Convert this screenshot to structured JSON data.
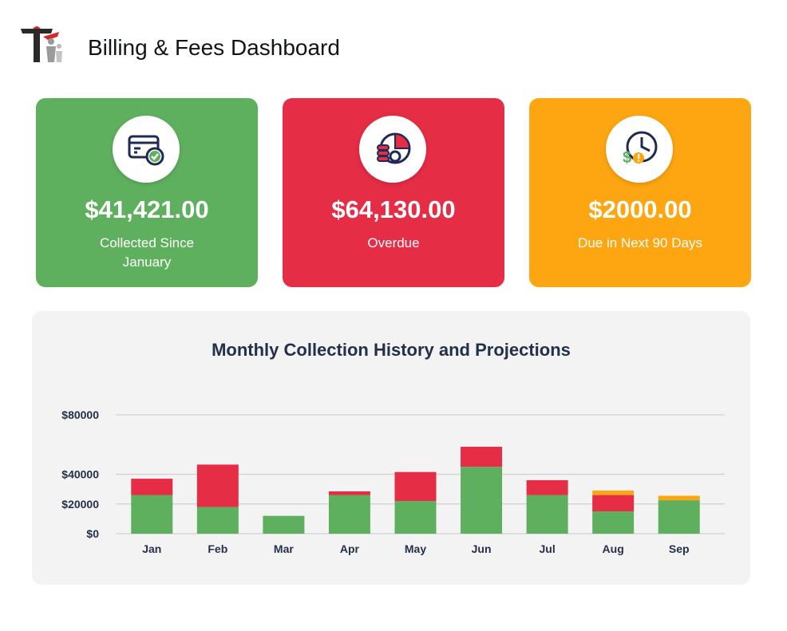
{
  "header": {
    "title": "Billing & Fees Dashboard"
  },
  "cards": [
    {
      "amount": "$41,421.00",
      "caption": "Collected Since January",
      "color": "#5fb05e",
      "icon": "card-check-icon"
    },
    {
      "amount": "$64,130.00",
      "caption": "Overdue",
      "color": "#e52d45",
      "icon": "pie-coins-icon"
    },
    {
      "amount": "$2000.00",
      "caption": "Due in Next 90 Days",
      "color": "#fea512",
      "icon": "clock-dollar-warning-icon"
    }
  ],
  "colors": {
    "collected": "#5fb05e",
    "overdue": "#e52d45",
    "projected": "#fea512",
    "text": "#24304a",
    "grid": "#d0d0d0"
  },
  "chart_data": {
    "type": "bar",
    "stacked": true,
    "title": "Monthly Collection History and Projections",
    "xlabel": "",
    "ylabel": "",
    "categories": [
      "Jan",
      "Feb",
      "Mar",
      "Apr",
      "May",
      "Jun",
      "Jul",
      "Aug",
      "Sep"
    ],
    "series": [
      {
        "values": [
          26000,
          18000,
          12000,
          26000,
          22000,
          45000,
          26000,
          15000,
          22500
        ],
        "color": "#5fb05e"
      },
      {
        "values": [
          11000,
          28500,
          0,
          2500,
          19500,
          13500,
          10000,
          11000,
          0
        ],
        "color": "#e52d45"
      },
      {
        "values": [
          0,
          0,
          0,
          0,
          0,
          0,
          0,
          3000,
          3000
        ],
        "color": "#fea512"
      }
    ],
    "ylim": [
      0,
      80000
    ],
    "yticks": [
      0,
      20000,
      40000,
      80000
    ],
    "ytick_labels": [
      "$0",
      "$20000",
      "$40000",
      "$80000"
    ],
    "grid": true,
    "legend": "none"
  }
}
